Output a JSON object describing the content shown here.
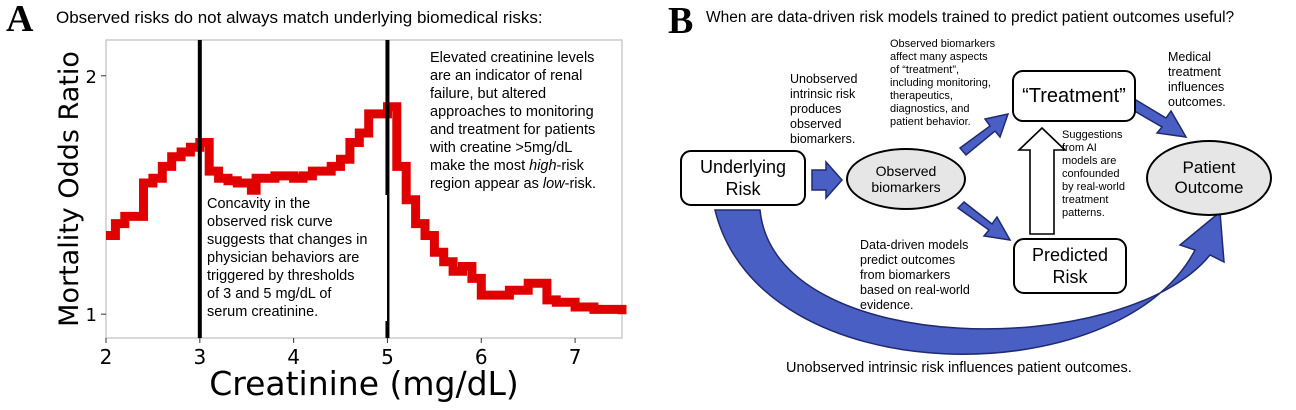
{
  "panel_a": {
    "letter": "A",
    "title": "Observed risks do not always match underlying biomedical risks:",
    "annotation_right": [
      "Elevated creatinine levels",
      "are an indicator of renal",
      "failure, but altered",
      "approaches to monitoring",
      "and treatment for patients",
      "with creatine >5mg/dL",
      "make the most high-risk",
      "region appear as low-risk."
    ],
    "annotation_left": [
      "Concavity in the",
      "observed risk curve",
      "suggests that changes in",
      "physician behaviors are",
      "triggered by thresholds",
      "of 3 and 5 mg/dL of",
      "serum creatinine."
    ]
  },
  "chart_data": {
    "type": "line",
    "title": "",
    "xlabel": "Creatinine (mg/dL)",
    "ylabel": "Mortality Odds Ratio",
    "xlim": [
      2,
      7.5
    ],
    "ylim": [
      0.9,
      2.15
    ],
    "xticks": [
      2,
      3,
      4,
      5,
      6,
      7
    ],
    "yticks": [
      1,
      2
    ],
    "vlines": [
      3,
      5
    ],
    "grid": false,
    "series": [
      {
        "color": "#e00000",
        "x": [
          2.0,
          2.1,
          2.2,
          2.3,
          2.4,
          2.5,
          2.6,
          2.7,
          2.8,
          2.9,
          3.0,
          3.05,
          3.1,
          3.2,
          3.3,
          3.4,
          3.5,
          3.55,
          3.6,
          3.7,
          3.8,
          3.9,
          4.0,
          4.1,
          4.2,
          4.3,
          4.4,
          4.5,
          4.6,
          4.7,
          4.8,
          4.9,
          5.0,
          5.05,
          5.1,
          5.2,
          5.3,
          5.4,
          5.5,
          5.6,
          5.7,
          5.8,
          5.9,
          6.0,
          6.1,
          6.2,
          6.3,
          6.4,
          6.5,
          6.6,
          6.7,
          6.8,
          6.9,
          7.0,
          7.1,
          7.2,
          7.3,
          7.4,
          7.5
        ],
        "y": [
          1.33,
          1.38,
          1.41,
          1.41,
          1.55,
          1.57,
          1.62,
          1.66,
          1.68,
          1.7,
          1.72,
          1.72,
          1.6,
          1.57,
          1.56,
          1.55,
          1.55,
          1.52,
          1.57,
          1.57,
          1.58,
          1.58,
          1.57,
          1.58,
          1.6,
          1.6,
          1.62,
          1.65,
          1.72,
          1.76,
          1.84,
          1.84,
          1.87,
          1.87,
          1.62,
          1.48,
          1.38,
          1.33,
          1.26,
          1.22,
          1.18,
          1.2,
          1.15,
          1.08,
          1.08,
          1.08,
          1.1,
          1.1,
          1.13,
          1.13,
          1.06,
          1.05,
          1.05,
          1.03,
          1.03,
          1.02,
          1.02,
          1.02,
          1.0
        ]
      }
    ]
  },
  "panel_b": {
    "letter": "B",
    "title": "When are data-driven risk models trained to predict patient outcomes useful?",
    "nodes": {
      "underlying_risk": "Underlying Risk",
      "observed_biomarkers": "Observed biomarkers",
      "treatment": "“Treatment”",
      "predicted_risk": "Predicted Risk",
      "patient_outcome": "Patient Outcome"
    },
    "notes": {
      "unobserved_intrinsic": [
        "Unobserved",
        "intrinsic risk",
        "produces",
        "observed",
        "biomarkers."
      ],
      "biomarkers_affect": [
        "Observed biomarkers",
        "affect many aspects",
        "of “treatment”,",
        "including monitoring,",
        "therapeutics,",
        "diagnostics, and",
        "patient behavior."
      ],
      "medical_treatment": [
        "Medical",
        "treatment",
        "influences",
        "outcomes."
      ],
      "suggestions": [
        "Suggestions",
        "from AI",
        "models are",
        "confounded",
        "by real-world",
        "treatment",
        "patterns."
      ],
      "data_driven": [
        "Data-driven models",
        "predict outcomes",
        "from biomarkers",
        "based on real-world",
        "evidence."
      ],
      "bottom": "Unobserved intrinsic risk influences patient outcomes."
    },
    "colors": {
      "arrow_fill": "#4a5fc4",
      "arrow_edge": "#1f2a70",
      "node_fill": "#e6e6e6"
    }
  }
}
